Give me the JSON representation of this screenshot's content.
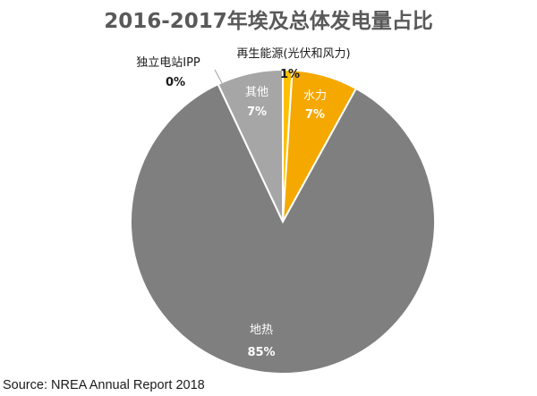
{
  "chart_data": {
    "type": "pie",
    "title": "2016-2017年埃及总体发电量占比",
    "slices": [
      {
        "name": "再生能源(光伏和风力)",
        "value": 1,
        "label": "1%",
        "color": "#FFC000"
      },
      {
        "name": "水力",
        "value": 7,
        "label": "7%",
        "color": "#F5A800"
      },
      {
        "name": "地热",
        "value": 85,
        "label": "85%",
        "color": "#7F7F7F"
      },
      {
        "name": "独立电站IPP",
        "value": 0,
        "label": "0%",
        "color": "#BFBFBF"
      },
      {
        "name": "其他",
        "value": 7,
        "label": "7%",
        "color": "#A6A6A6"
      }
    ],
    "legend": "none"
  },
  "source": "Source: NREA Annual Report 2018"
}
